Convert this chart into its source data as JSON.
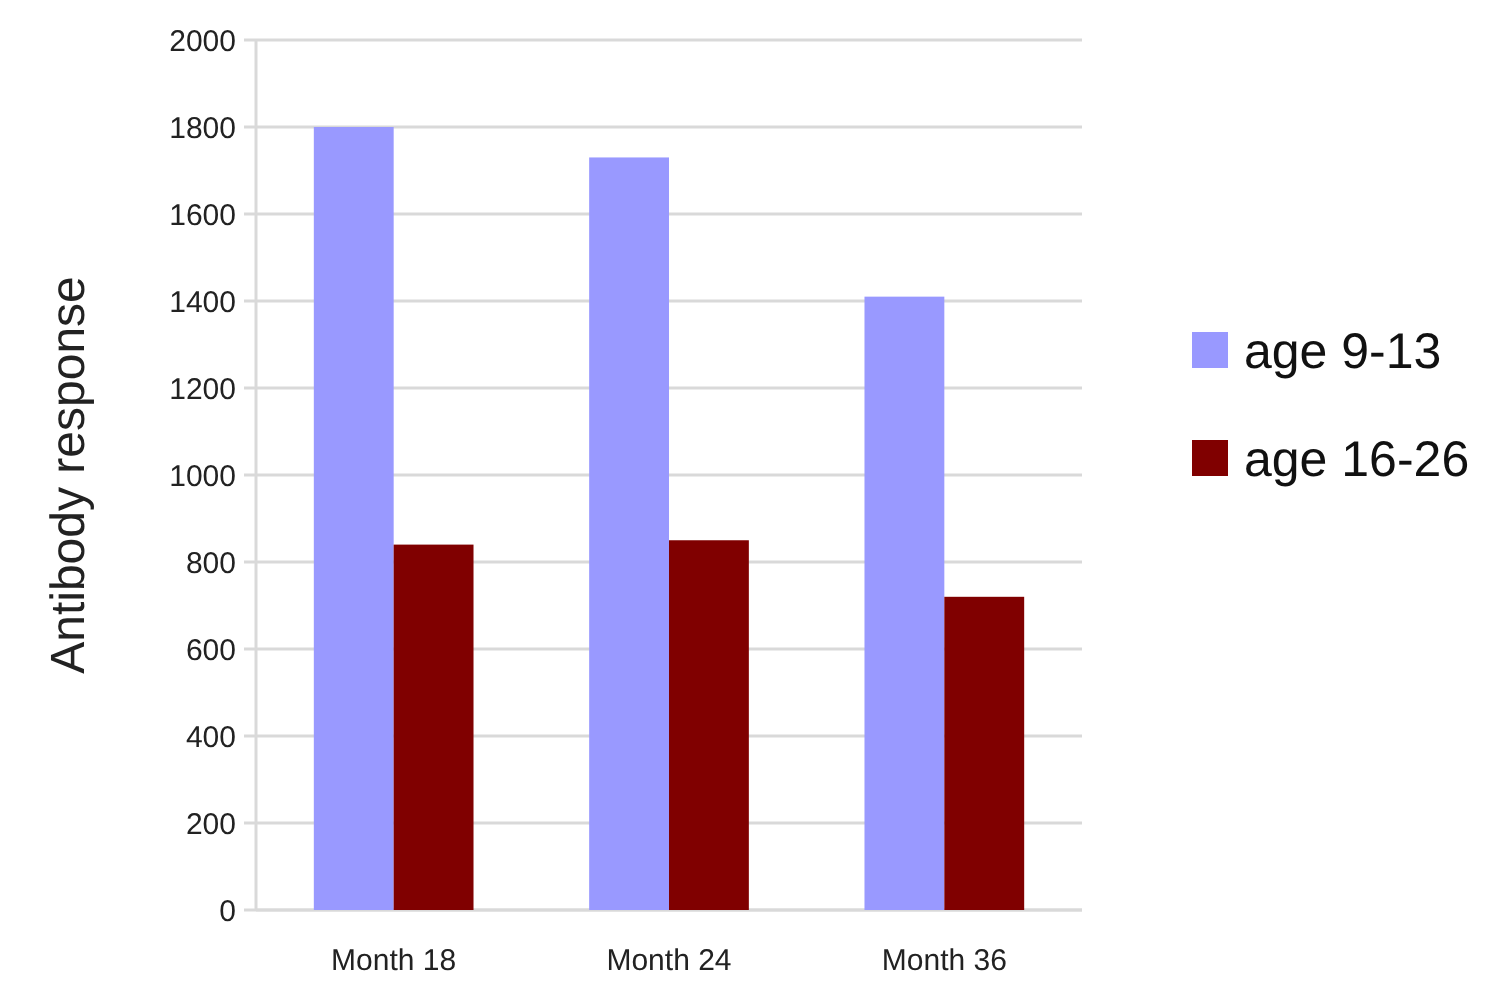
{
  "chart_data": {
    "type": "bar",
    "ylabel": "Antibody response",
    "categories": [
      "Month 18",
      "Month 24",
      "Month 36"
    ],
    "series": [
      {
        "name": "age 9-13",
        "color": "#9999ff",
        "values": [
          1800,
          1730,
          1410
        ]
      },
      {
        "name": "age 16-26",
        "color": "#800000",
        "values": [
          840,
          850,
          720
        ]
      }
    ],
    "ylim": [
      0,
      2000
    ],
    "yticks": [
      0,
      200,
      400,
      600,
      800,
      1000,
      1200,
      1400,
      1600,
      1800,
      2000
    ],
    "grid": "y",
    "legend": "right"
  }
}
